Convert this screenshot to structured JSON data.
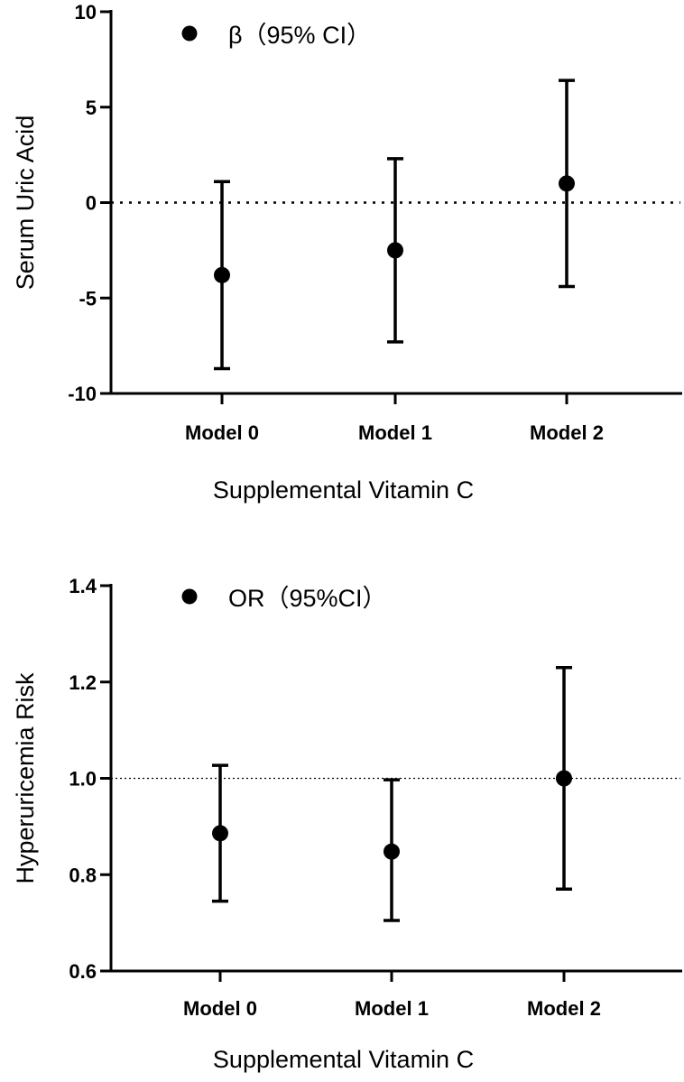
{
  "chart_data": [
    {
      "type": "scatter",
      "subtype": "point-with-error-bars",
      "categories": [
        "Model 0",
        "Model 1",
        "Model 2"
      ],
      "series": [
        {
          "name": "β（95% CI）",
          "values": [
            -3.8,
            -2.5,
            1.0
          ],
          "lower": [
            -8.7,
            -7.3,
            -4.4
          ],
          "upper": [
            1.1,
            2.3,
            6.4
          ]
        }
      ],
      "ylim": [
        -10,
        10
      ],
      "yticks": [
        "-10",
        "-5",
        "0",
        "5",
        "10"
      ],
      "reference_line": 0,
      "reference_line_style": "dotted",
      "xlabel": "Supplemental Vitamin C",
      "ylabel": "Serum Uric Acid",
      "legend_position": "top-left",
      "grid": false
    },
    {
      "type": "scatter",
      "subtype": "point-with-error-bars",
      "categories": [
        "Model 0",
        "Model 1",
        "Model 2"
      ],
      "series": [
        {
          "name": "OR（95%CI）",
          "values": [
            0.886,
            0.848,
            1.0
          ],
          "lower": [
            0.745,
            0.705,
            0.77
          ],
          "upper": [
            1.027,
            0.997,
            1.23
          ]
        }
      ],
      "ylim": [
        0.6,
        1.4
      ],
      "yticks": [
        "0.6",
        "0.8",
        "1.0",
        "1.2",
        "1.4"
      ],
      "reference_line": 1.0,
      "reference_line_style": "dotted",
      "xlabel": "Supplemental Vitamin C",
      "ylabel": "Hyperuricemia Risk",
      "legend_position": "top-left",
      "grid": false
    }
  ],
  "colors": {
    "ink": "#000000",
    "background": "#ffffff"
  }
}
